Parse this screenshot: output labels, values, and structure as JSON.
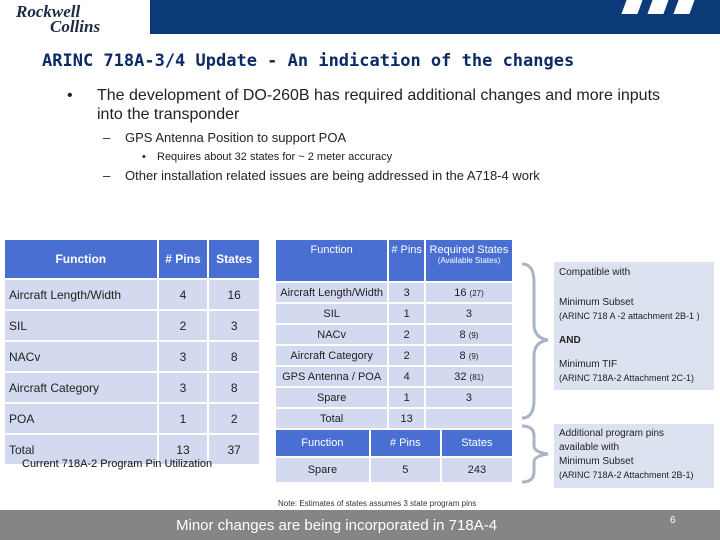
{
  "header": {
    "logo_line1": "Rockwell",
    "logo_line2": "Collins"
  },
  "title": "ARINC 718A-3/4 Update  - An indication of the changes",
  "bullets": {
    "main_marker": "•",
    "main": "The development of DO-260B  has required additional changes and more inputs into the transponder",
    "dash": "–",
    "sub1": "GPS Antenna Position to support POA",
    "subsub_marker": "•",
    "subsub1": "Requires about 32 states for ~ 2 meter accuracy",
    "sub2": "Other installation related issues are being addressed in the A718-4 work"
  },
  "table1": {
    "headers": [
      "Function",
      "# Pins",
      "States"
    ],
    "rows": [
      [
        "Aircraft Length/Width",
        "4",
        "16"
      ],
      [
        "SIL",
        "2",
        "3"
      ],
      [
        "NACv",
        "3",
        "8"
      ],
      [
        "Aircraft Category",
        "3",
        "8"
      ],
      [
        "POA",
        "1",
        "2"
      ],
      [
        "Total",
        "13",
        "37"
      ]
    ],
    "caption": "Current 718A-2 Program Pin Utilization"
  },
  "table2": {
    "headers": [
      "Function",
      "# Pins",
      "Required States"
    ],
    "header_note": "(Available States)",
    "rows": [
      [
        "Aircraft Length/Width",
        "3",
        "16",
        "(27)"
      ],
      [
        "SIL",
        "1",
        "3",
        ""
      ],
      [
        "NACv",
        "2",
        "8",
        "(9)"
      ],
      [
        "Aircraft Category",
        "2",
        "8",
        "(9)"
      ],
      [
        "GPS Antenna / POA",
        "4",
        "32",
        "(81)"
      ],
      [
        "Spare",
        "1",
        "3",
        ""
      ],
      [
        "Total",
        "13",
        "",
        ""
      ]
    ]
  },
  "table3": {
    "headers": [
      "Function",
      "# Pins",
      "States"
    ],
    "rows": [
      [
        "Spare",
        "5",
        "243"
      ]
    ]
  },
  "compat_box": {
    "line1": "Compatible with",
    "line2": "Minimum Subset",
    "line3": "(ARINC 718 A -2 attachment 2B-1 )",
    "line4": "AND",
    "line5": "Minimum TIF",
    "line6": "(ARINC 718A-2 Attachment 2C-1)"
  },
  "additional_box": {
    "line1": "Additional program pins",
    "line2": "available with",
    "line3": "Minimum Subset",
    "line4": "(ARINC 718A-2 Attachment 2B-1)"
  },
  "note": "Note:  Estimates of states assumes 3 state program pins",
  "footer": {
    "text": "Minor changes are being incorporated in 718A-4",
    "page": "6"
  }
}
